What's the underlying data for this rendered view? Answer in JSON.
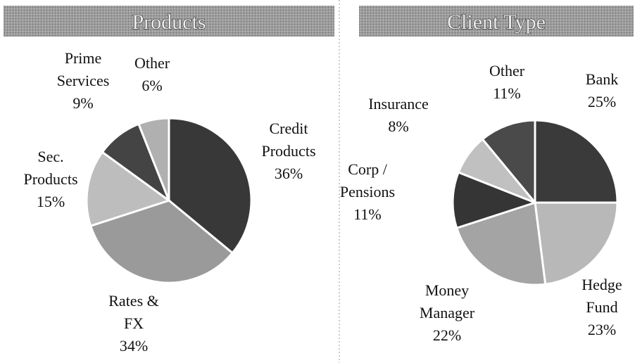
{
  "chart_data": [
    {
      "type": "pie",
      "title": "Products",
      "categories": [
        "Credit Products",
        "Rates & FX",
        "Sec. Products",
        "Prime Services",
        "Other"
      ],
      "values": [
        36,
        34,
        15,
        9,
        6
      ],
      "value_labels": [
        "36%",
        "34%",
        "15%",
        "9%",
        "6%"
      ],
      "colors": [
        "#383838",
        "#9a9a9a",
        "#bdbdbd",
        "#444444",
        "#b0b0b0"
      ]
    },
    {
      "type": "pie",
      "title": "Client Type",
      "categories": [
        "Bank",
        "Hedge Fund",
        "Money Manager",
        "Corp / Pensions",
        "Insurance",
        "Other"
      ],
      "values": [
        25,
        23,
        22,
        11,
        8,
        11
      ],
      "value_labels": [
        "25%",
        "23%",
        "22%",
        "11%",
        "8%",
        "11%"
      ],
      "colors": [
        "#3a3a3a",
        "#b8b8b8",
        "#a4a4a4",
        "#353535",
        "#c0c0c0",
        "#4a4a4a"
      ]
    }
  ]
}
